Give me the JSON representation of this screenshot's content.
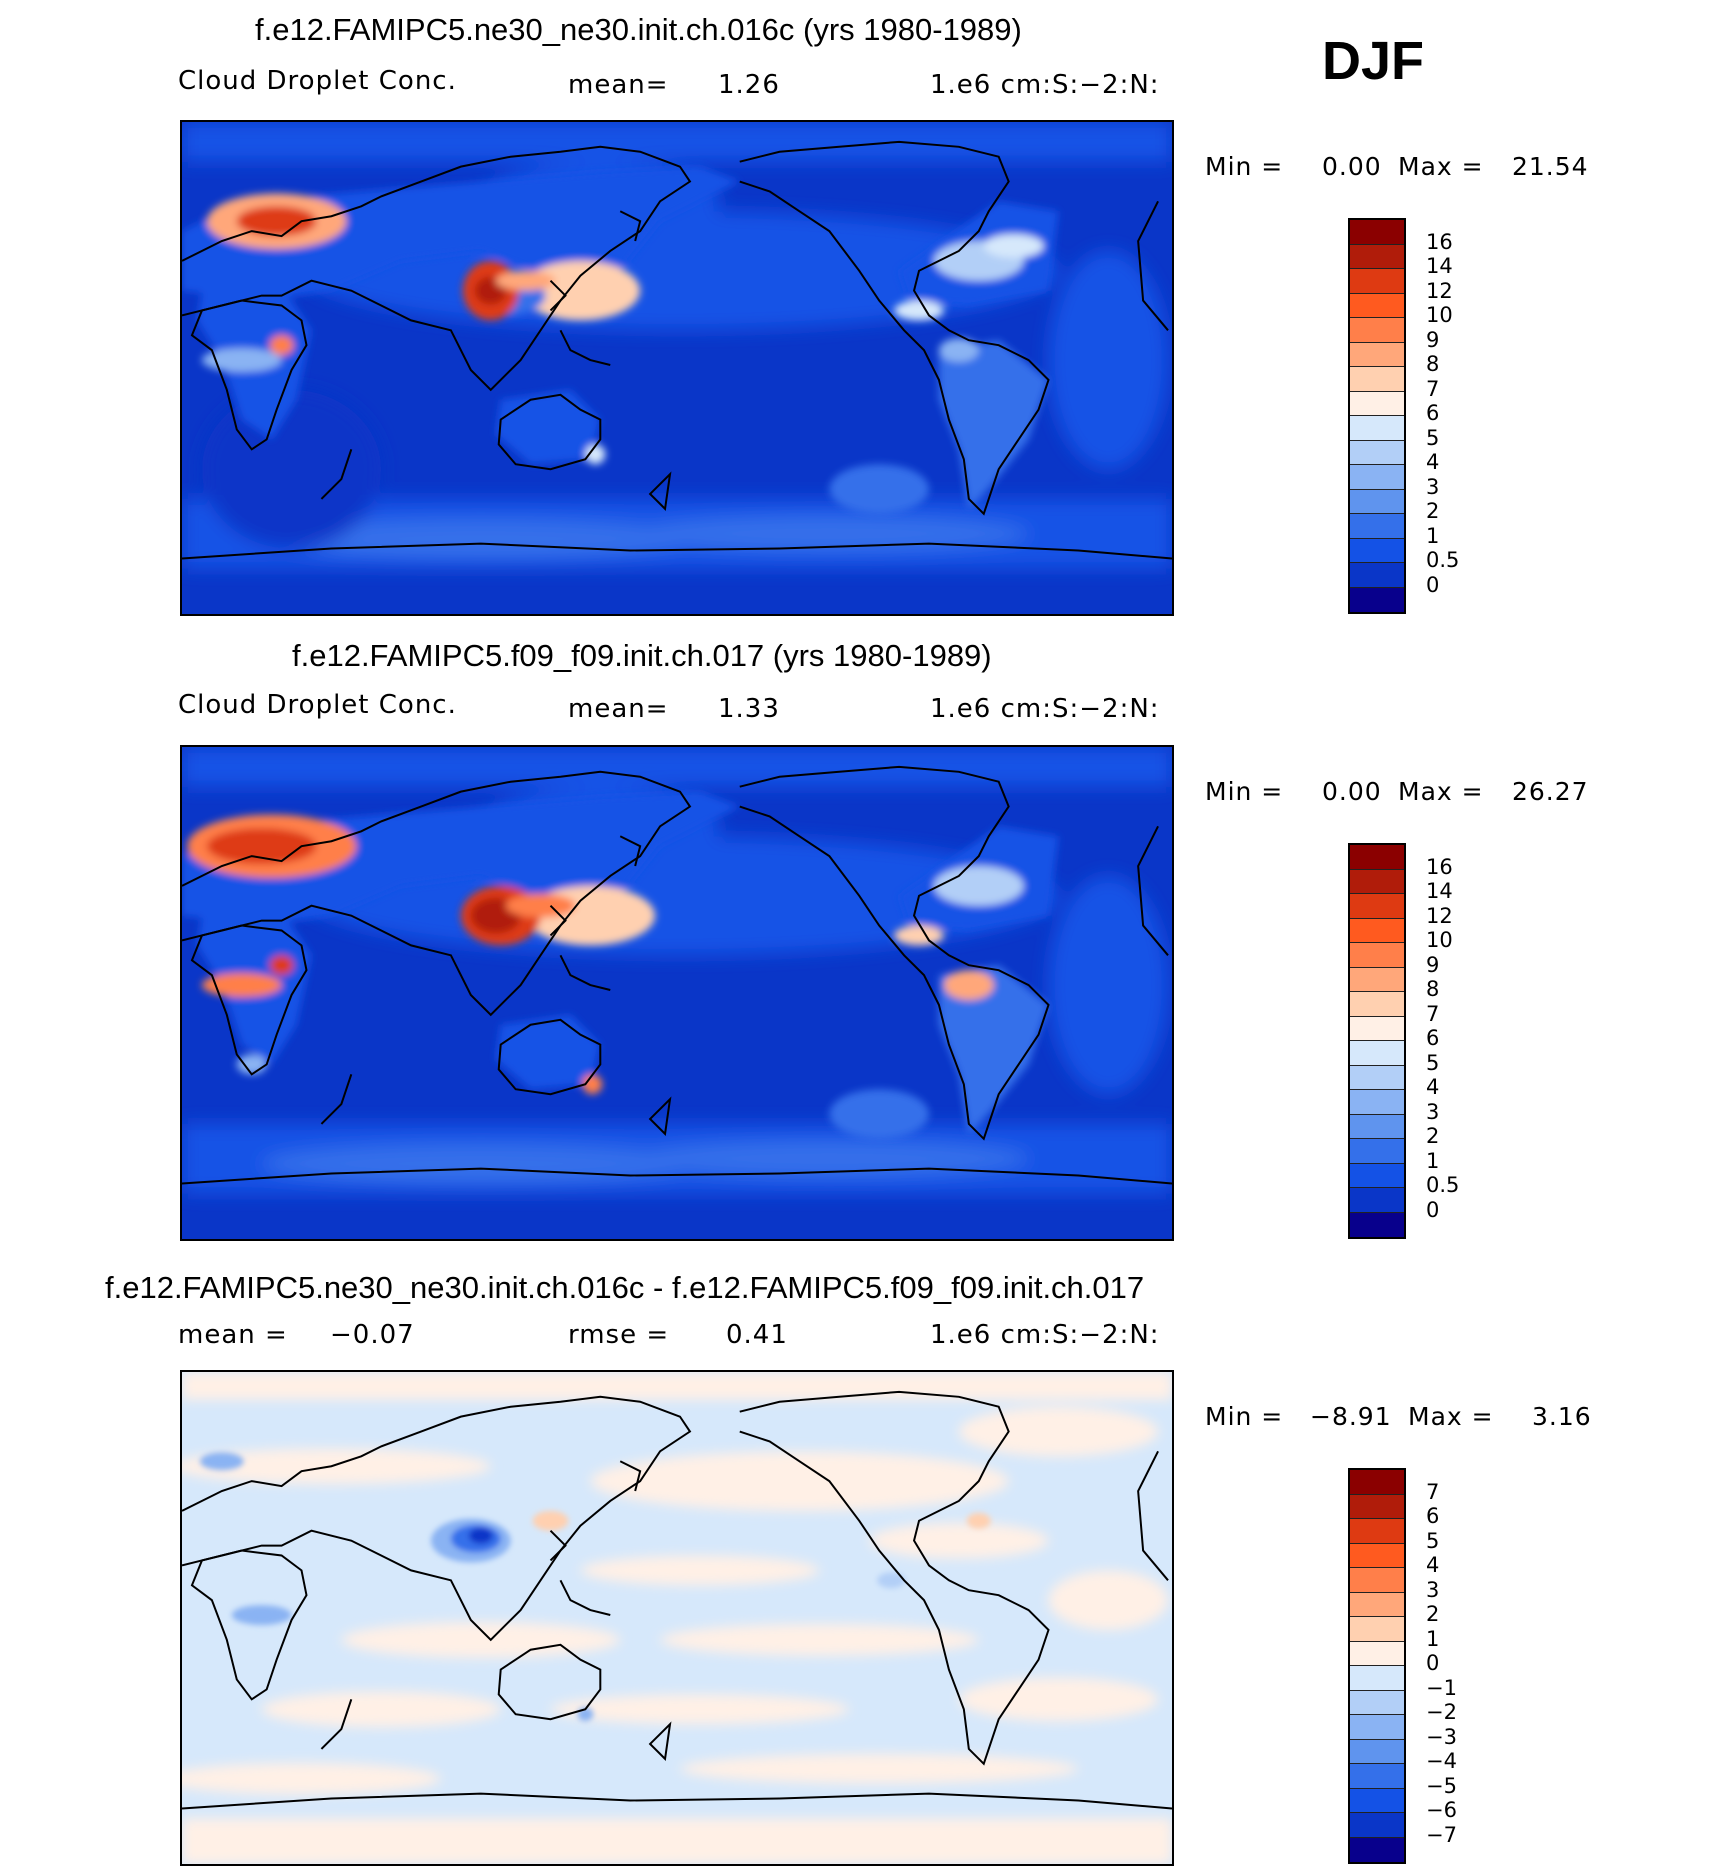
{
  "season": "DJF",
  "panels": [
    {
      "title": "f.e12.FAMIPC5.ne30_ne30.init.ch.016c (yrs 1980-1989)",
      "variable": "Cloud Droplet Conc.",
      "stat_label": "mean=",
      "stat_value": "1.26",
      "units": "1.e6 cm:S:−2:N:",
      "min_label": "Min =",
      "min_value": "0.00",
      "max_label": "Max =",
      "max_value": "21.54",
      "colorbar_labels": [
        "16",
        "14",
        "12",
        "10",
        "9",
        "8",
        "7",
        "6",
        "5",
        "4",
        "3",
        "2",
        "1",
        "0.5",
        "0"
      ],
      "colors": [
        "#8b0000",
        "#b01c0a",
        "#de3a12",
        "#ff5a1f",
        "#ff7f4a",
        "#ffa77a",
        "#ffd0b0",
        "#fff0e6",
        "#d6e8fb",
        "#b2cff7",
        "#8ab3f3",
        "#5f94ee",
        "#3470ea",
        "#1452e6",
        "#0a36c8",
        "#08008c"
      ]
    },
    {
      "title": "f.e12.FAMIPC5.f09_f09.init.ch.017 (yrs 1980-1989)",
      "variable": "Cloud Droplet Conc.",
      "stat_label": "mean=",
      "stat_value": "1.33",
      "units": "1.e6 cm:S:−2:N:",
      "min_label": "Min =",
      "min_value": "0.00",
      "max_label": "Max =",
      "max_value": "26.27",
      "colorbar_labels": [
        "16",
        "14",
        "12",
        "10",
        "9",
        "8",
        "7",
        "6",
        "5",
        "4",
        "3",
        "2",
        "1",
        "0.5",
        "0"
      ],
      "colors": [
        "#8b0000",
        "#b01c0a",
        "#de3a12",
        "#ff5a1f",
        "#ff7f4a",
        "#ffa77a",
        "#ffd0b0",
        "#fff0e6",
        "#d6e8fb",
        "#b2cff7",
        "#8ab3f3",
        "#5f94ee",
        "#3470ea",
        "#1452e6",
        "#0a36c8",
        "#08008c"
      ]
    },
    {
      "title": "f.e12.FAMIPC5.ne30_ne30.init.ch.016c - f.e12.FAMIPC5.f09_f09.init.ch.017",
      "stat_label": "mean =",
      "stat_value": "−0.07",
      "stat2_label": "rmse =",
      "stat2_value": "0.41",
      "units": "1.e6 cm:S:−2:N:",
      "min_label": "Min =",
      "min_value": "−8.91",
      "max_label": "Max =",
      "max_value": "3.16",
      "colorbar_labels": [
        "7",
        "6",
        "5",
        "4",
        "3",
        "2",
        "1",
        "0",
        "−1",
        "−2",
        "−3",
        "−4",
        "−5",
        "−6",
        "−7"
      ],
      "colors": [
        "#8b0000",
        "#b01c0a",
        "#de3a12",
        "#ff5a1f",
        "#ff7f4a",
        "#ffa77a",
        "#ffd0b0",
        "#fff0e6",
        "#d6e8fb",
        "#b2cff7",
        "#8ab3f3",
        "#5f94ee",
        "#3470ea",
        "#1452e6",
        "#0a36c8",
        "#08008c"
      ]
    }
  ]
}
